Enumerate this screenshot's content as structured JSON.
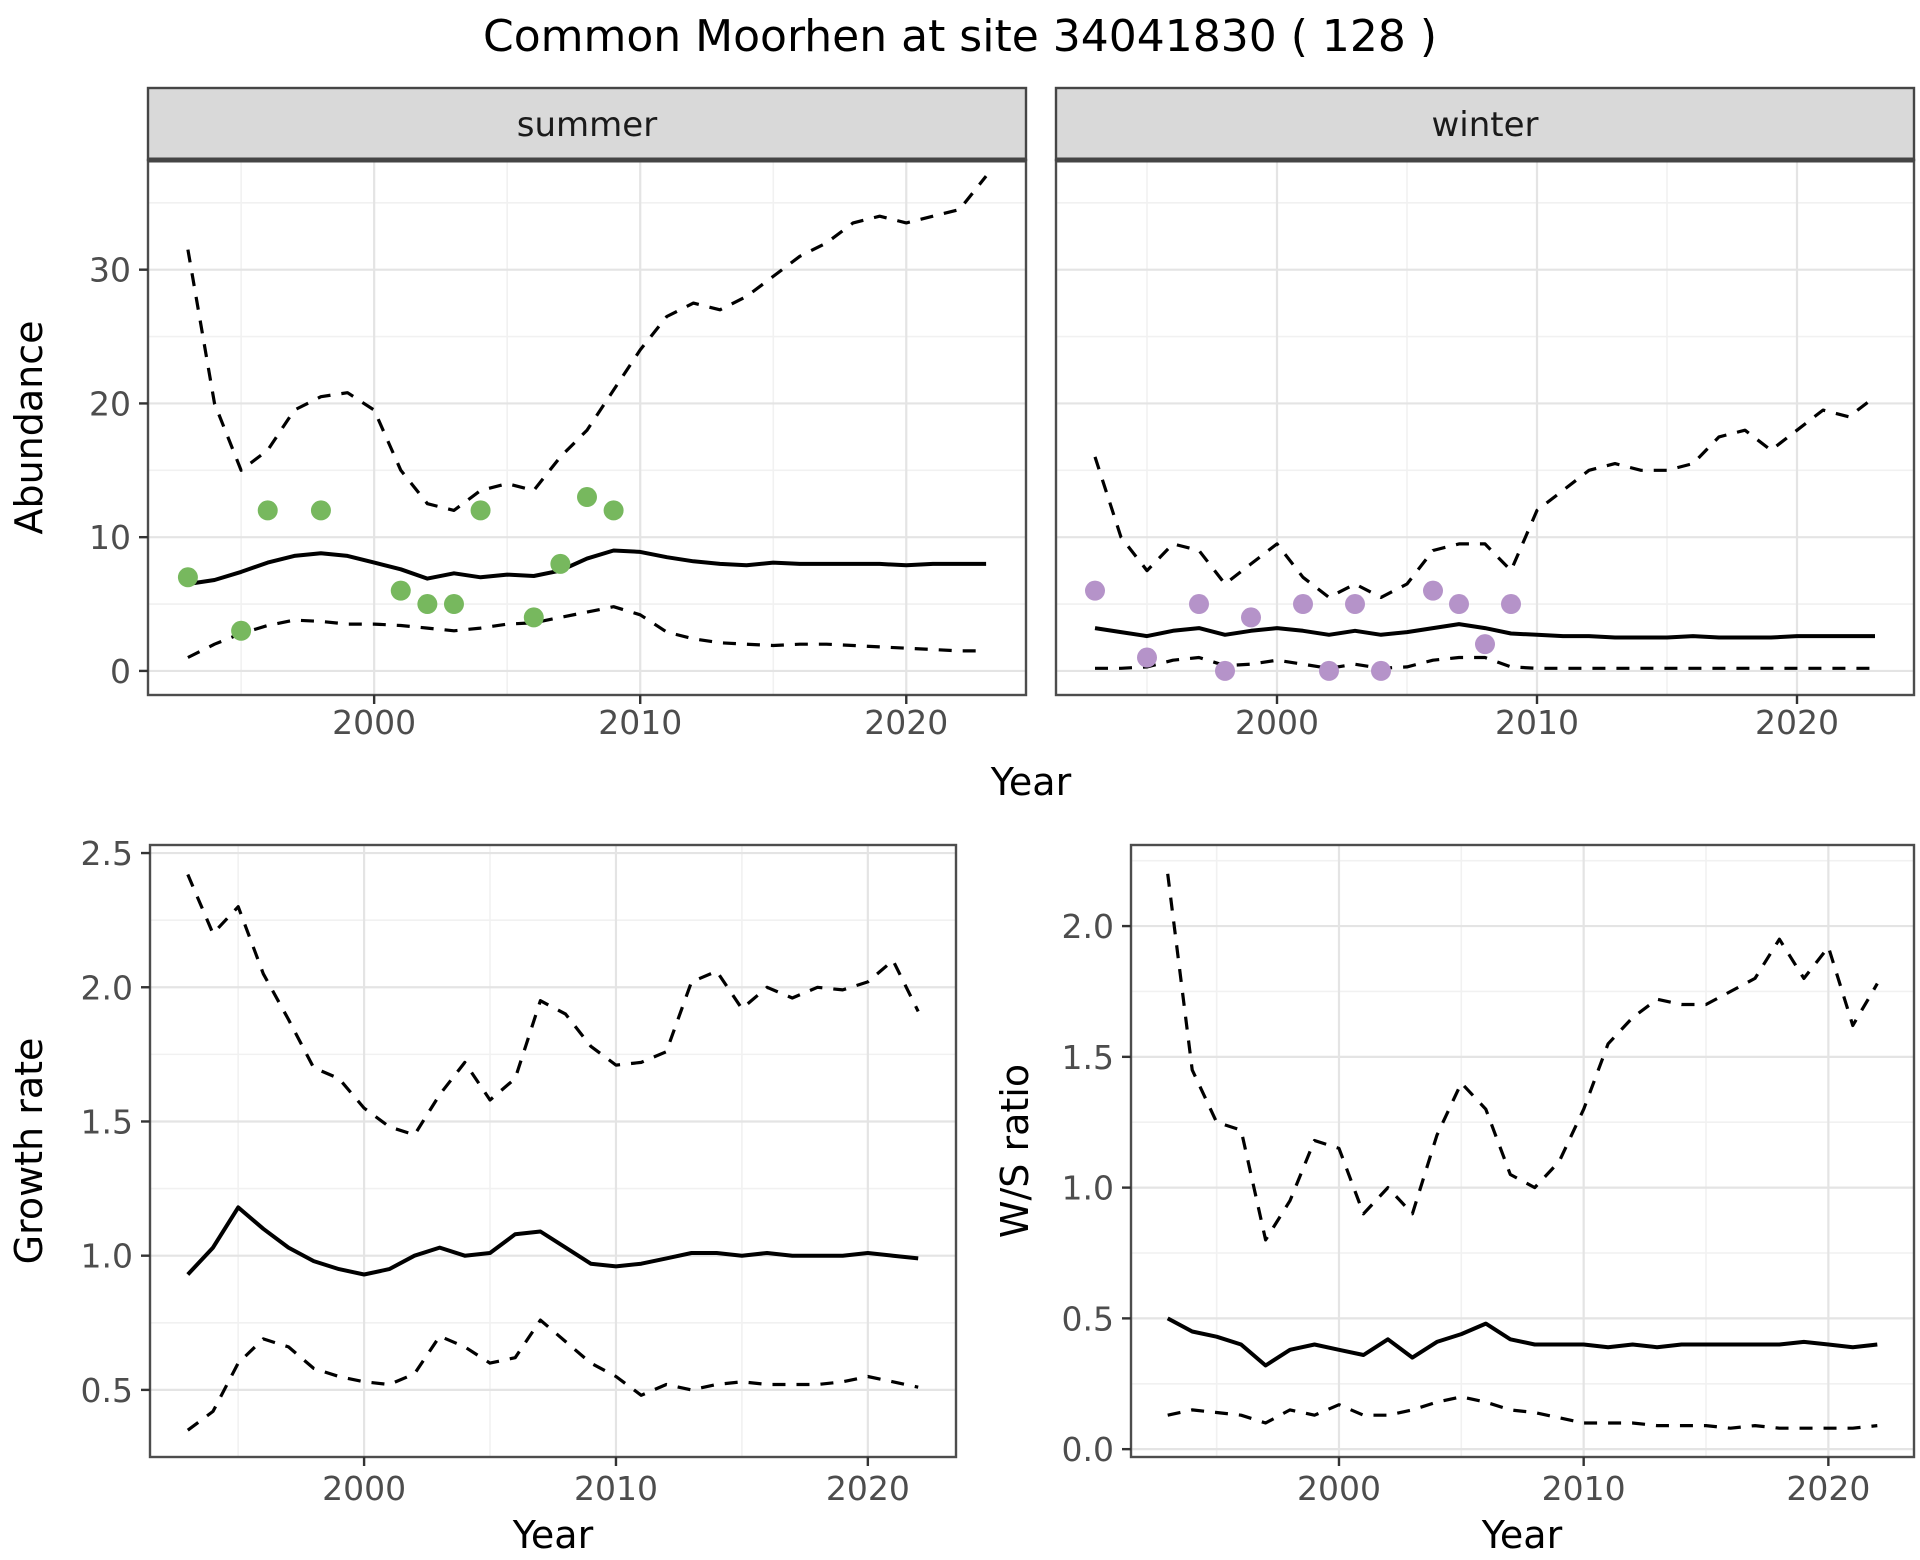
{
  "title": "Common Moorhen at site 34041830 ( 128 )",
  "shared_xlabel": "Year",
  "colors": {
    "summer_points": "#77b85e",
    "winter_points": "#b593c9",
    "line": "#000000",
    "strip_bg": "#d9d9d9",
    "strip_border": "#454545",
    "panel_border": "#4d4d4d",
    "grid_major": "#e4e4e4",
    "grid_minor": "#f1f1f1",
    "tick_text": "#4d4d4d",
    "title_text": "#000000"
  },
  "chart_data": [
    {
      "name": "abundance-summer",
      "type": "line",
      "facet_label": "summer",
      "xlabel": "Year",
      "ylabel": "Abundance",
      "xlim": [
        1991.5,
        2024.5
      ],
      "ylim": [
        -1.8,
        38.2
      ],
      "xticks": [
        2000,
        2010,
        2020
      ],
      "xticklabels": [
        "2000",
        "2010",
        "2020"
      ],
      "yticks": [
        0,
        10,
        20,
        30
      ],
      "yticklabels": [
        "0",
        "10",
        "20",
        "30"
      ],
      "x": [
        1993,
        1994,
        1995,
        1996,
        1997,
        1998,
        1999,
        2000,
        2001,
        2002,
        2003,
        2004,
        2005,
        2006,
        2007,
        2008,
        2009,
        2010,
        2011,
        2012,
        2013,
        2014,
        2015,
        2016,
        2017,
        2018,
        2019,
        2020,
        2021,
        2022,
        2023
      ],
      "series": [
        {
          "name": "upper-ci",
          "style": "dashed",
          "color": "#000000",
          "values": [
            31.5,
            20.0,
            15.0,
            16.5,
            19.5,
            20.5,
            20.8,
            19.5,
            15.0,
            12.5,
            12.0,
            13.5,
            14.0,
            13.5,
            16.0,
            18.0,
            21.0,
            24.0,
            26.5,
            27.5,
            27.0,
            28.0,
            29.5,
            31.0,
            32.0,
            33.5,
            34.0,
            33.5,
            34.0,
            34.5,
            37.0
          ]
        },
        {
          "name": "median",
          "style": "solid",
          "color": "#000000",
          "values": [
            6.5,
            6.8,
            7.4,
            8.1,
            8.6,
            8.8,
            8.6,
            8.1,
            7.6,
            6.9,
            7.3,
            7.0,
            7.2,
            7.1,
            7.5,
            8.4,
            9.0,
            8.9,
            8.5,
            8.2,
            8.0,
            7.9,
            8.1,
            8.0,
            8.0,
            8.0,
            8.0,
            7.9,
            8.0,
            8.0,
            8.0
          ]
        },
        {
          "name": "lower-ci",
          "style": "dashed",
          "color": "#000000",
          "values": [
            1.0,
            2.0,
            2.8,
            3.4,
            3.8,
            3.7,
            3.5,
            3.5,
            3.4,
            3.2,
            3.0,
            3.2,
            3.5,
            3.6,
            4.0,
            4.4,
            4.8,
            4.2,
            2.9,
            2.4,
            2.1,
            2.0,
            1.9,
            2.0,
            2.0,
            1.9,
            1.8,
            1.7,
            1.6,
            1.5,
            1.5
          ]
        }
      ],
      "points": {
        "name": "summer-observation",
        "color": "#77b85e",
        "x": [
          1993,
          1995,
          1996,
          1998,
          2001,
          2002,
          2003,
          2004,
          2006,
          2007,
          2008,
          2009
        ],
        "y": [
          7,
          3,
          12,
          12,
          6,
          5,
          5,
          12,
          4,
          8,
          13,
          12
        ]
      }
    },
    {
      "name": "abundance-winter",
      "type": "line",
      "facet_label": "winter",
      "xlabel": "Year",
      "ylabel": "",
      "xlim": [
        1991.5,
        2024.5
      ],
      "ylim": [
        -1.8,
        38.2
      ],
      "xticks": [
        2000,
        2010,
        2020
      ],
      "xticklabels": [
        "2000",
        "2010",
        "2020"
      ],
      "yticks": [
        0,
        10,
        20,
        30
      ],
      "yticklabels": [
        "0",
        "10",
        "20",
        "30"
      ],
      "x": [
        1993,
        1994,
        1995,
        1996,
        1997,
        1998,
        1999,
        2000,
        2001,
        2002,
        2003,
        2004,
        2005,
        2006,
        2007,
        2008,
        2009,
        2010,
        2011,
        2012,
        2013,
        2014,
        2015,
        2016,
        2017,
        2018,
        2019,
        2020,
        2021,
        2022,
        2023
      ],
      "series": [
        {
          "name": "upper-ci",
          "style": "dashed",
          "color": "#000000",
          "values": [
            16.0,
            10.0,
            7.5,
            9.5,
            9.0,
            6.5,
            8.0,
            9.5,
            7.0,
            5.5,
            6.5,
            5.5,
            6.5,
            9.0,
            9.5,
            9.5,
            7.5,
            12.0,
            13.5,
            15.0,
            15.5,
            15.0,
            15.0,
            15.5,
            17.5,
            18.0,
            16.5,
            18.0,
            19.5,
            19.0,
            20.5
          ]
        },
        {
          "name": "median",
          "style": "solid",
          "color": "#000000",
          "values": [
            3.2,
            2.9,
            2.6,
            3.0,
            3.2,
            2.7,
            3.0,
            3.2,
            3.0,
            2.7,
            3.0,
            2.7,
            2.9,
            3.2,
            3.5,
            3.2,
            2.8,
            2.7,
            2.6,
            2.6,
            2.5,
            2.5,
            2.5,
            2.6,
            2.5,
            2.5,
            2.5,
            2.6,
            2.6,
            2.6,
            2.6
          ]
        },
        {
          "name": "lower-ci",
          "style": "dashed",
          "color": "#000000",
          "values": [
            0.2,
            0.2,
            0.3,
            0.8,
            1.0,
            0.4,
            0.5,
            0.8,
            0.5,
            0.2,
            0.5,
            0.2,
            0.3,
            0.8,
            1.0,
            1.0,
            0.3,
            0.2,
            0.2,
            0.2,
            0.2,
            0.2,
            0.2,
            0.2,
            0.2,
            0.2,
            0.2,
            0.2,
            0.2,
            0.2,
            0.2
          ]
        }
      ],
      "points": {
        "name": "winter-observation",
        "color": "#b593c9",
        "x": [
          1993,
          1995,
          1997,
          1998,
          1999,
          2001,
          2002,
          2003,
          2004,
          2006,
          2007,
          2008,
          2009
        ],
        "y": [
          6,
          1,
          5,
          0,
          4,
          5,
          0,
          5,
          0,
          6,
          5,
          2,
          5
        ]
      }
    },
    {
      "name": "growth-rate",
      "type": "line",
      "facet_label": "",
      "xlabel": "Year",
      "ylabel": "Growth rate",
      "xlim": [
        1991.5,
        2023.5
      ],
      "ylim": [
        0.25,
        2.53
      ],
      "xticks": [
        2000,
        2010,
        2020
      ],
      "xticklabels": [
        "2000",
        "2010",
        "2020"
      ],
      "yticks": [
        0.5,
        1.0,
        1.5,
        2.0,
        2.5
      ],
      "yticklabels": [
        "0.5",
        "1.0",
        "1.5",
        "2.0",
        "2.5"
      ],
      "x": [
        1993,
        1994,
        1995,
        1996,
        1997,
        1998,
        1999,
        2000,
        2001,
        2002,
        2003,
        2004,
        2005,
        2006,
        2007,
        2008,
        2009,
        2010,
        2011,
        2012,
        2013,
        2014,
        2015,
        2016,
        2017,
        2018,
        2019,
        2020,
        2021,
        2022
      ],
      "series": [
        {
          "name": "upper-ci",
          "style": "dashed",
          "color": "#000000",
          "values": [
            2.42,
            2.2,
            2.3,
            2.05,
            1.88,
            1.7,
            1.66,
            1.55,
            1.48,
            1.45,
            1.6,
            1.72,
            1.58,
            1.66,
            1.95,
            1.9,
            1.78,
            1.71,
            1.72,
            1.76,
            2.02,
            2.06,
            1.92,
            2.0,
            1.96,
            2.0,
            1.99,
            2.02,
            2.1,
            1.91
          ]
        },
        {
          "name": "median",
          "style": "solid",
          "color": "#000000",
          "values": [
            0.93,
            1.03,
            1.18,
            1.1,
            1.03,
            0.98,
            0.95,
            0.93,
            0.95,
            1.0,
            1.03,
            1.0,
            1.01,
            1.08,
            1.09,
            1.03,
            0.97,
            0.96,
            0.97,
            0.99,
            1.01,
            1.01,
            1.0,
            1.01,
            1.0,
            1.0,
            1.0,
            1.01,
            1.0,
            0.99
          ]
        },
        {
          "name": "lower-ci",
          "style": "dashed",
          "color": "#000000",
          "values": [
            0.35,
            0.42,
            0.6,
            0.69,
            0.66,
            0.58,
            0.55,
            0.53,
            0.52,
            0.56,
            0.7,
            0.66,
            0.6,
            0.62,
            0.76,
            0.68,
            0.6,
            0.55,
            0.48,
            0.52,
            0.5,
            0.52,
            0.53,
            0.52,
            0.52,
            0.52,
            0.53,
            0.55,
            0.53,
            0.51
          ]
        }
      ],
      "points": null
    },
    {
      "name": "ws-ratio",
      "type": "line",
      "facet_label": "",
      "xlabel": "Year",
      "ylabel": "W/S ratio",
      "xlim": [
        1991.5,
        2023.5
      ],
      "ylim": [
        -0.03,
        2.31
      ],
      "xticks": [
        2000,
        2010,
        2020
      ],
      "xticklabels": [
        "2000",
        "2010",
        "2020"
      ],
      "yticks": [
        0.0,
        0.5,
        1.0,
        1.5,
        2.0
      ],
      "yticklabels": [
        "0.0",
        "0.5",
        "1.0",
        "1.5",
        "2.0"
      ],
      "x": [
        1993,
        1994,
        1995,
        1996,
        1997,
        1998,
        1999,
        2000,
        2001,
        2002,
        2003,
        2004,
        2005,
        2006,
        2007,
        2008,
        2009,
        2010,
        2011,
        2012,
        2013,
        2014,
        2015,
        2016,
        2017,
        2018,
        2019,
        2020,
        2021,
        2022
      ],
      "series": [
        {
          "name": "upper-ci",
          "style": "dashed",
          "color": "#000000",
          "values": [
            2.2,
            1.45,
            1.25,
            1.22,
            0.8,
            0.95,
            1.18,
            1.15,
            0.9,
            1.0,
            0.9,
            1.2,
            1.4,
            1.3,
            1.05,
            1.0,
            1.1,
            1.3,
            1.55,
            1.65,
            1.72,
            1.7,
            1.7,
            1.75,
            1.8,
            1.95,
            1.8,
            1.92,
            1.62,
            1.78
          ]
        },
        {
          "name": "median",
          "style": "solid",
          "color": "#000000",
          "values": [
            0.5,
            0.45,
            0.43,
            0.4,
            0.32,
            0.38,
            0.4,
            0.38,
            0.36,
            0.42,
            0.35,
            0.41,
            0.44,
            0.48,
            0.42,
            0.4,
            0.4,
            0.4,
            0.39,
            0.4,
            0.39,
            0.4,
            0.4,
            0.4,
            0.4,
            0.4,
            0.41,
            0.4,
            0.39,
            0.4
          ]
        },
        {
          "name": "lower-ci",
          "style": "dashed",
          "color": "#000000",
          "values": [
            0.13,
            0.15,
            0.14,
            0.13,
            0.1,
            0.15,
            0.13,
            0.17,
            0.13,
            0.13,
            0.15,
            0.18,
            0.2,
            0.18,
            0.15,
            0.14,
            0.12,
            0.1,
            0.1,
            0.1,
            0.09,
            0.09,
            0.09,
            0.08,
            0.09,
            0.08,
            0.08,
            0.08,
            0.08,
            0.09
          ]
        }
      ],
      "points": null
    }
  ]
}
